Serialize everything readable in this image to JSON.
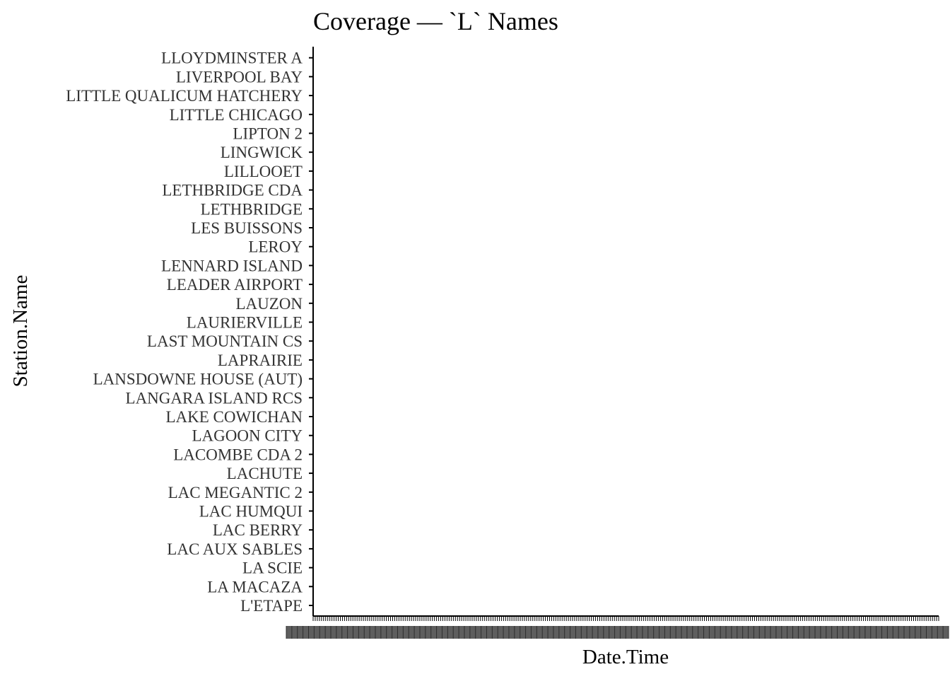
{
  "chart_data": {
    "type": "scatter",
    "title": "Coverage — `L` Names",
    "xlabel": "Date.Time",
    "ylabel": "Station.Name",
    "categories": [
      "L'ETAPE",
      "LA MACAZA",
      "LA SCIE",
      "LAC AUX SABLES",
      "LAC BERRY",
      "LAC HUMQUI",
      "LAC MEGANTIC 2",
      "LACHUTE",
      "LACOMBE CDA 2",
      "LAGOON CITY",
      "LAKE COWICHAN",
      "LANGARA ISLAND RCS",
      "LANSDOWNE HOUSE (AUT)",
      "LAPRAIRIE",
      "LAST MOUNTAIN CS",
      "LAURIERVILLE",
      "LAUZON",
      "LEADER AIRPORT",
      "LENNARD ISLAND",
      "LEROY",
      "LES BUISSONS",
      "LETHBRIDGE",
      "LETHBRIDGE CDA",
      "LILLOOET",
      "LINGWICK",
      "LIPTON 2",
      "LITTLE CHICAGO",
      "LITTLE QUALICUM HATCHERY",
      "LIVERPOOL BAY",
      "LLOYDMINSTER A"
    ],
    "points": [],
    "grid": false,
    "legend": "none",
    "colors": {
      "axis": "#000000",
      "tick_label": "#333333",
      "x_tick_label": "#4d4d4d",
      "title": "#000000"
    }
  }
}
